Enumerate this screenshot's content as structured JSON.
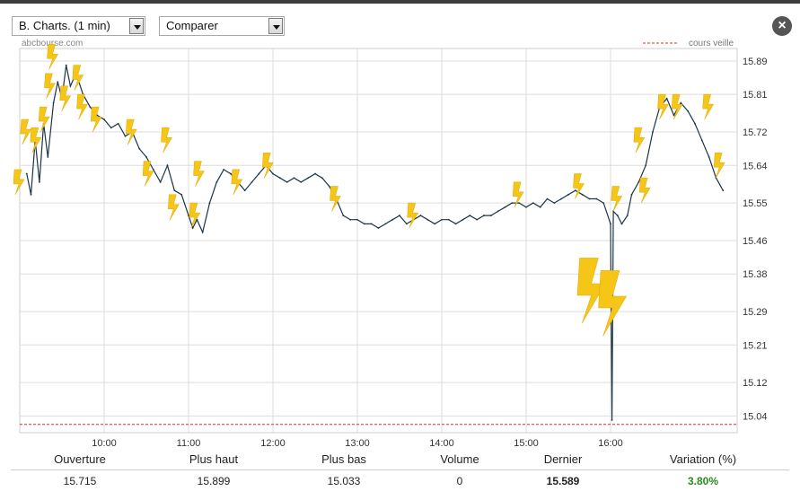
{
  "toolbar": {
    "chart_type_select": "B. Charts. (1 min)",
    "compare_select": "Comparer"
  },
  "colors": {
    "price_line": "#1a3548",
    "previous_close": "#d0302c",
    "event_icon": "#f5c518",
    "variation_positive": "#2a8a1e",
    "grid": "#dddddd"
  },
  "chart_data": {
    "type": "line",
    "source_label": "abcbourse.com",
    "legend": {
      "label": "cours veille",
      "placement": "top-right",
      "style": "dashed"
    },
    "xlabel": "",
    "ylabel": "",
    "x_ticks": [
      "10:00",
      "11:00",
      "12:00",
      "13:00",
      "14:00",
      "15:00",
      "16:00"
    ],
    "y_ticks": [
      15.04,
      15.12,
      15.21,
      15.29,
      15.38,
      15.46,
      15.55,
      15.64,
      15.72,
      15.81,
      15.89
    ],
    "ylim": [
      15.0,
      15.92
    ],
    "xlim": [
      "09:00",
      "17:30"
    ],
    "grid": true,
    "previous_close": 15.02,
    "series": [
      {
        "points": [
          [
            "09:05",
            15.62
          ],
          [
            "09:08",
            15.57
          ],
          [
            "09:11",
            15.7
          ],
          [
            "09:14",
            15.6
          ],
          [
            "09:17",
            15.74
          ],
          [
            "09:20",
            15.66
          ],
          [
            "09:24",
            15.79
          ],
          [
            "09:27",
            15.84
          ],
          [
            "09:30",
            15.8
          ],
          [
            "09:33",
            15.88
          ],
          [
            "09:36",
            15.83
          ],
          [
            "09:40",
            15.86
          ],
          [
            "09:45",
            15.81
          ],
          [
            "09:50",
            15.78
          ],
          [
            "09:55",
            15.76
          ],
          [
            "10:00",
            15.75
          ],
          [
            "10:05",
            15.73
          ],
          [
            "10:10",
            15.74
          ],
          [
            "10:15",
            15.71
          ],
          [
            "10:20",
            15.72
          ],
          [
            "10:25",
            15.68
          ],
          [
            "10:30",
            15.66
          ],
          [
            "10:35",
            15.63
          ],
          [
            "10:40",
            15.6
          ],
          [
            "10:45",
            15.64
          ],
          [
            "10:50",
            15.58
          ],
          [
            "10:55",
            15.57
          ],
          [
            "11:00",
            15.52
          ],
          [
            "11:03",
            15.49
          ],
          [
            "11:06",
            15.51
          ],
          [
            "11:10",
            15.48
          ],
          [
            "11:15",
            15.55
          ],
          [
            "11:20",
            15.6
          ],
          [
            "11:25",
            15.63
          ],
          [
            "11:30",
            15.62
          ],
          [
            "11:35",
            15.6
          ],
          [
            "11:40",
            15.58
          ],
          [
            "11:45",
            15.6
          ],
          [
            "11:50",
            15.62
          ],
          [
            "11:55",
            15.64
          ],
          [
            "12:00",
            15.62
          ],
          [
            "12:05",
            15.61
          ],
          [
            "12:10",
            15.6
          ],
          [
            "12:15",
            15.61
          ],
          [
            "12:20",
            15.6
          ],
          [
            "12:25",
            15.61
          ],
          [
            "12:30",
            15.62
          ],
          [
            "12:35",
            15.61
          ],
          [
            "12:40",
            15.59
          ],
          [
            "12:45",
            15.56
          ],
          [
            "12:50",
            15.52
          ],
          [
            "12:55",
            15.51
          ],
          [
            "13:00",
            15.51
          ],
          [
            "13:05",
            15.5
          ],
          [
            "13:10",
            15.5
          ],
          [
            "13:15",
            15.49
          ],
          [
            "13:20",
            15.5
          ],
          [
            "13:25",
            15.51
          ],
          [
            "13:30",
            15.52
          ],
          [
            "13:35",
            15.5
          ],
          [
            "13:40",
            15.51
          ],
          [
            "13:45",
            15.52
          ],
          [
            "13:50",
            15.51
          ],
          [
            "13:55",
            15.5
          ],
          [
            "14:00",
            15.51
          ],
          [
            "14:05",
            15.51
          ],
          [
            "14:10",
            15.5
          ],
          [
            "14:15",
            15.51
          ],
          [
            "14:20",
            15.52
          ],
          [
            "14:25",
            15.51
          ],
          [
            "14:30",
            15.52
          ],
          [
            "14:35",
            15.52
          ],
          [
            "14:40",
            15.53
          ],
          [
            "14:45",
            15.54
          ],
          [
            "14:50",
            15.55
          ],
          [
            "14:55",
            15.55
          ],
          [
            "15:00",
            15.54
          ],
          [
            "15:05",
            15.55
          ],
          [
            "15:10",
            15.54
          ],
          [
            "15:15",
            15.56
          ],
          [
            "15:20",
            15.55
          ],
          [
            "15:25",
            15.56
          ],
          [
            "15:30",
            15.57
          ],
          [
            "15:35",
            15.58
          ],
          [
            "15:40",
            15.57
          ],
          [
            "15:45",
            15.56
          ],
          [
            "15:50",
            15.56
          ],
          [
            "15:55",
            15.55
          ],
          [
            "16:00",
            15.5
          ],
          [
            "16:01",
            15.03
          ],
          [
            "16:02",
            15.53
          ],
          [
            "16:05",
            15.52
          ],
          [
            "16:08",
            15.5
          ],
          [
            "16:12",
            15.52
          ],
          [
            "16:15",
            15.57
          ],
          [
            "16:20",
            15.6
          ],
          [
            "16:25",
            15.64
          ],
          [
            "16:30",
            15.72
          ],
          [
            "16:35",
            15.78
          ],
          [
            "16:40",
            15.8
          ],
          [
            "16:45",
            15.76
          ],
          [
            "16:50",
            15.79
          ],
          [
            "16:55",
            15.77
          ],
          [
            "17:00",
            15.74
          ],
          [
            "17:05",
            15.7
          ],
          [
            "17:10",
            15.66
          ],
          [
            "17:15",
            15.61
          ],
          [
            "17:20",
            15.58
          ]
        ]
      }
    ],
    "events": [
      {
        "time": "09:00",
        "price": 15.6,
        "size": "small"
      },
      {
        "time": "09:05",
        "price": 15.72,
        "size": "small"
      },
      {
        "time": "09:12",
        "price": 15.7,
        "size": "small"
      },
      {
        "time": "09:18",
        "price": 15.75,
        "size": "small"
      },
      {
        "time": "09:22",
        "price": 15.83,
        "size": "small"
      },
      {
        "time": "09:24",
        "price": 15.9,
        "size": "small"
      },
      {
        "time": "09:33",
        "price": 15.8,
        "size": "small"
      },
      {
        "time": "09:42",
        "price": 15.85,
        "size": "small"
      },
      {
        "time": "09:45",
        "price": 15.78,
        "size": "small"
      },
      {
        "time": "09:55",
        "price": 15.75,
        "size": "small"
      },
      {
        "time": "10:20",
        "price": 15.72,
        "size": "small"
      },
      {
        "time": "10:32",
        "price": 15.62,
        "size": "small"
      },
      {
        "time": "10:45",
        "price": 15.7,
        "size": "small"
      },
      {
        "time": "10:50",
        "price": 15.54,
        "size": "small"
      },
      {
        "time": "11:05",
        "price": 15.52,
        "size": "small"
      },
      {
        "time": "11:08",
        "price": 15.62,
        "size": "small"
      },
      {
        "time": "11:35",
        "price": 15.6,
        "size": "small"
      },
      {
        "time": "11:57",
        "price": 15.64,
        "size": "small"
      },
      {
        "time": "12:45",
        "price": 15.56,
        "size": "small"
      },
      {
        "time": "13:40",
        "price": 15.52,
        "size": "small"
      },
      {
        "time": "14:55",
        "price": 15.57,
        "size": "small"
      },
      {
        "time": "15:38",
        "price": 15.59,
        "size": "small"
      },
      {
        "time": "16:05",
        "price": 15.56,
        "size": "small"
      },
      {
        "time": "16:25",
        "price": 15.58,
        "size": "small"
      },
      {
        "time": "16:21",
        "price": 15.7,
        "size": "small"
      },
      {
        "time": "16:38",
        "price": 15.78,
        "size": "small"
      },
      {
        "time": "16:48",
        "price": 15.78,
        "size": "small"
      },
      {
        "time": "17:10",
        "price": 15.78,
        "size": "small"
      },
      {
        "time": "17:18",
        "price": 15.64,
        "size": "small"
      },
      {
        "time": "15:48",
        "price": 15.34,
        "size": "large"
      },
      {
        "time": "16:03",
        "price": 15.31,
        "size": "large"
      }
    ]
  },
  "stats": {
    "labels": {
      "open": "Ouverture",
      "high": "Plus haut",
      "low": "Plus bas",
      "volume": "Volume",
      "last": "Dernier",
      "variation": "Variation (%)"
    },
    "values": {
      "open": "15.715",
      "high": "15.899",
      "low": "15.033",
      "volume": "0",
      "last": "15.589",
      "variation": "3.80%"
    }
  }
}
